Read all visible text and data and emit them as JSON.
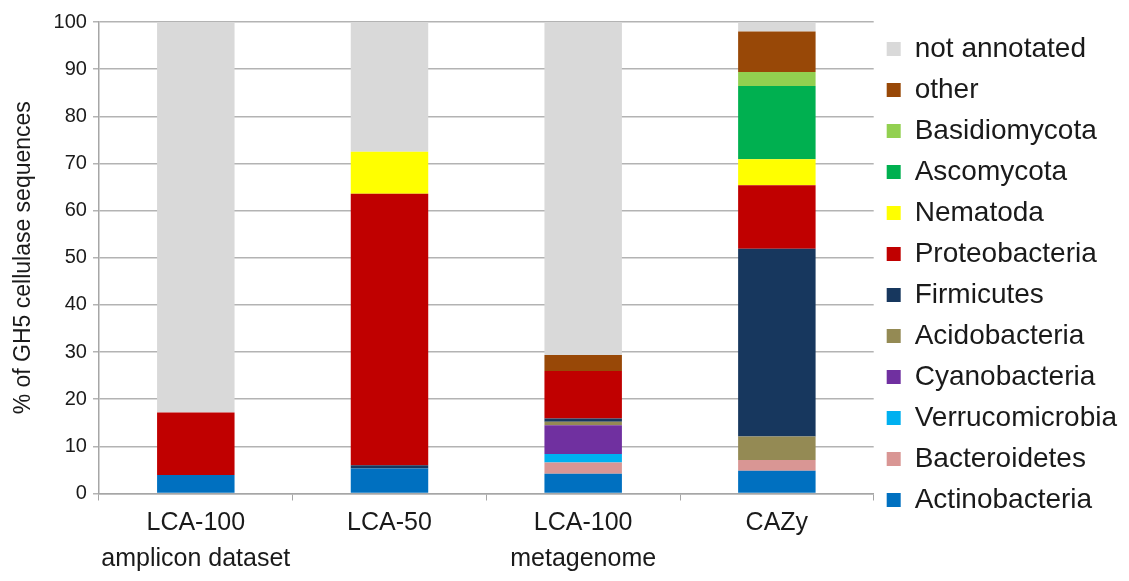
{
  "chart_data": {
    "type": "bar",
    "stacked": true,
    "ylabel": "% of GH5 cellulase sequences",
    "categories": [
      "LCA-100\namplicon dataset",
      "LCA-50",
      "LCA-100\nmetagenome",
      "CAZy"
    ],
    "ylim": [
      0,
      100
    ],
    "yticks": [
      0,
      10,
      20,
      30,
      40,
      50,
      60,
      70,
      80,
      90,
      100
    ],
    "grid": "y",
    "legend": "right",
    "series": [
      {
        "name": "Actinobacteria",
        "color": "#0070c0",
        "values": [
          3.9,
          5.3,
          4.2,
          4.8
        ]
      },
      {
        "name": "Bacteroidetes",
        "color": "#d99694",
        "values": [
          null,
          null,
          2.4,
          2.3
        ]
      },
      {
        "name": "Verrucomicrobia",
        "color": "#00b0f0",
        "values": [
          null,
          null,
          1.8,
          null
        ]
      },
      {
        "name": "Cyanobacteria",
        "color": "#7030a0",
        "values": [
          null,
          null,
          6.1,
          null
        ]
      },
      {
        "name": "Acidobacteria",
        "color": "#948a54",
        "values": [
          null,
          null,
          0.7,
          5.0
        ]
      },
      {
        "name": "Firmicutes",
        "color": "#17375e",
        "values": [
          null,
          0.7,
          0.7,
          39.8
        ]
      },
      {
        "name": "Proteobacteria",
        "color": "#c00000",
        "values": [
          13.3,
          57.6,
          10.1,
          13.5
        ]
      },
      {
        "name": "Nematoda",
        "color": "#ffff00",
        "values": [
          null,
          8.9,
          null,
          5.5
        ]
      },
      {
        "name": "Ascomycota",
        "color": "#00b050",
        "values": [
          null,
          null,
          null,
          15.5
        ]
      },
      {
        "name": "Basidiomycota",
        "color": "#92d050",
        "values": [
          null,
          null,
          null,
          3.0
        ]
      },
      {
        "name": "other",
        "color": "#984807",
        "values": [
          null,
          null,
          3.4,
          8.6
        ]
      },
      {
        "name": "not annotated",
        "color": "#d9d9d9",
        "values": [
          82.8,
          27.5,
          70.6,
          2.0
        ]
      }
    ]
  }
}
